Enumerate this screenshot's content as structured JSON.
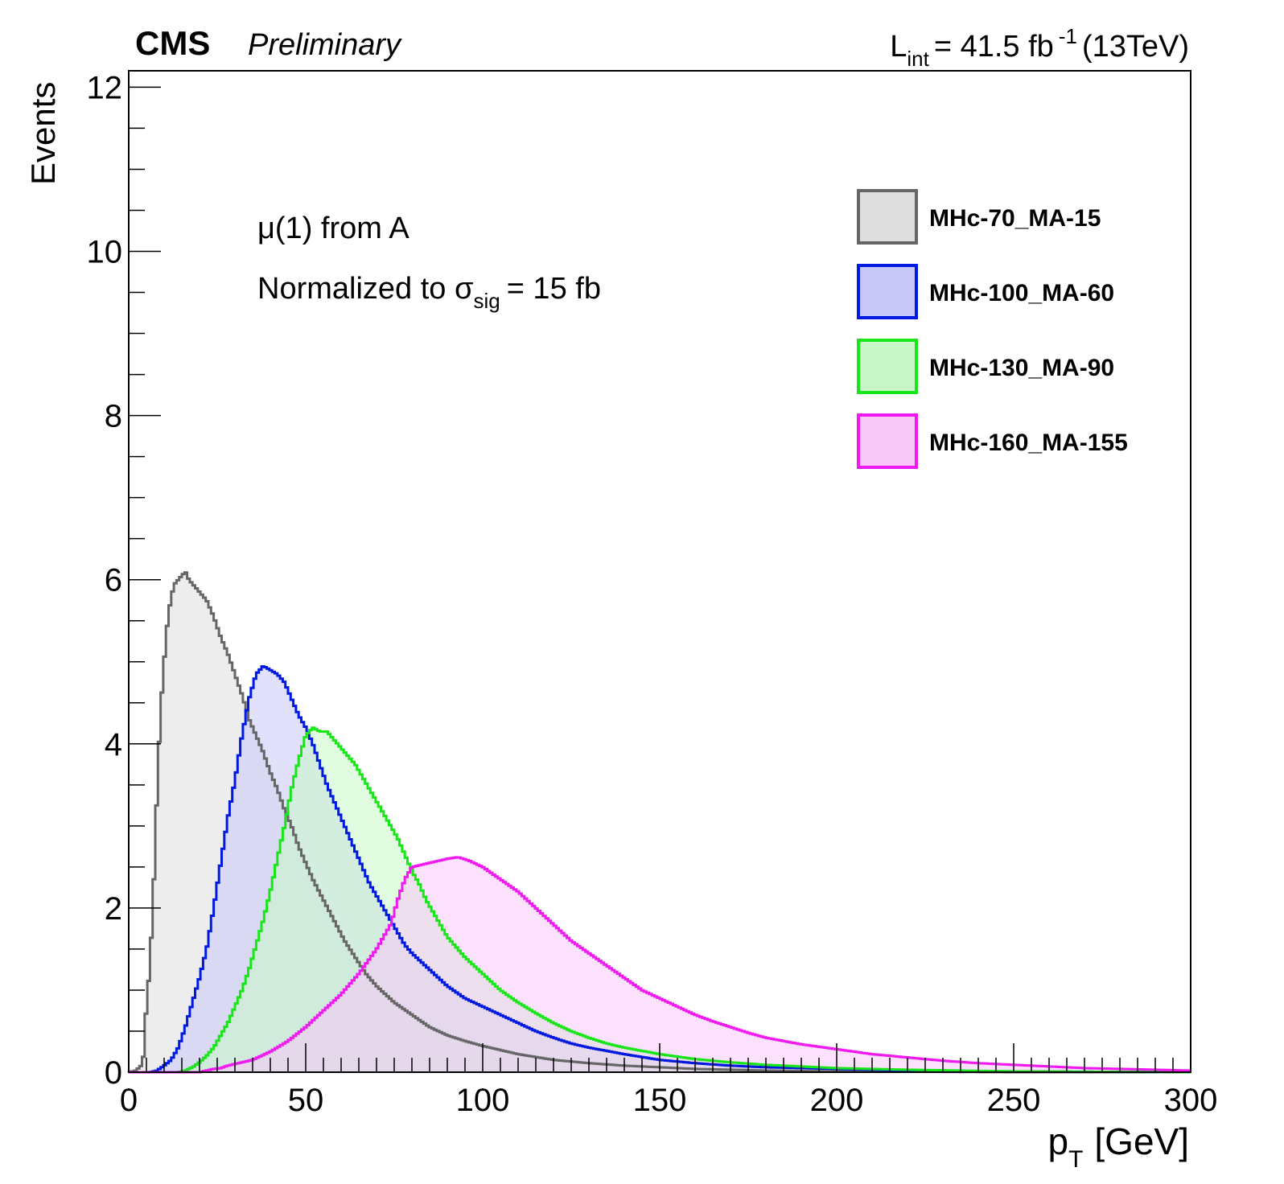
{
  "header": {
    "experiment": "CMS",
    "status": "Preliminary",
    "lumi_prefix": "L",
    "lumi_sub": "int",
    "lumi_value": "= 41.5 fb",
    "lumi_sup": "-1",
    "energy": "(13TeV)"
  },
  "annotations": {
    "line1_symbol": "μ",
    "line1_rest": "(1) from A",
    "line2_prefix": "Normalized to ",
    "line2_symbol": "σ",
    "line2_sub": "sig",
    "line2_suffix": "= 15 fb"
  },
  "colors": {
    "MHc-70_MA-15": "#666666",
    "MHc-100_MA-60": "#0019e0",
    "MHc-130_MA-90": "#19e619",
    "MHc-160_MA-155": "#f019f0"
  },
  "chart_data": {
    "type": "area",
    "xlabel_main": "p",
    "xlabel_sub": "T",
    "xlabel_unit": "[GeV]",
    "ylabel": "Events",
    "xlim": [
      0,
      300
    ],
    "ylim": [
      0,
      12.2
    ],
    "xticks": [
      0,
      50,
      100,
      150,
      200,
      250,
      300
    ],
    "yticks": [
      0,
      2,
      4,
      6,
      8,
      10,
      12
    ],
    "grid": false,
    "legend_position": "top-right",
    "series": [
      {
        "name": "MHc-70_MA-15",
        "fill": "#dedede",
        "line": "#666666",
        "points": [
          [
            0,
            0
          ],
          [
            2,
            0.02
          ],
          [
            4,
            0.1
          ],
          [
            5,
            0.8
          ],
          [
            6,
            1.3
          ],
          [
            7,
            2.2
          ],
          [
            8,
            3.4
          ],
          [
            9,
            4.4
          ],
          [
            10,
            5.0
          ],
          [
            11,
            5.5
          ],
          [
            12,
            5.8
          ],
          [
            13,
            5.95
          ],
          [
            14,
            6.0
          ],
          [
            15,
            6.05
          ],
          [
            16,
            6.1
          ],
          [
            17,
            6.0
          ],
          [
            18,
            5.95
          ],
          [
            20,
            5.85
          ],
          [
            22,
            5.75
          ],
          [
            24,
            5.55
          ],
          [
            26,
            5.3
          ],
          [
            28,
            5.1
          ],
          [
            30,
            4.85
          ],
          [
            32,
            4.6
          ],
          [
            34,
            4.3
          ],
          [
            36,
            4.1
          ],
          [
            38,
            3.9
          ],
          [
            40,
            3.65
          ],
          [
            42,
            3.45
          ],
          [
            44,
            3.2
          ],
          [
            46,
            3.0
          ],
          [
            48,
            2.75
          ],
          [
            50,
            2.55
          ],
          [
            52,
            2.35
          ],
          [
            55,
            2.1
          ],
          [
            58,
            1.85
          ],
          [
            61,
            1.6
          ],
          [
            64,
            1.4
          ],
          [
            67,
            1.2
          ],
          [
            70,
            1.05
          ],
          [
            75,
            0.85
          ],
          [
            80,
            0.7
          ],
          [
            85,
            0.55
          ],
          [
            90,
            0.45
          ],
          [
            95,
            0.38
          ],
          [
            100,
            0.32
          ],
          [
            110,
            0.22
          ],
          [
            120,
            0.15
          ],
          [
            130,
            0.11
          ],
          [
            140,
            0.08
          ],
          [
            150,
            0.06
          ],
          [
            160,
            0.04
          ],
          [
            180,
            0.02
          ],
          [
            200,
            0.01
          ],
          [
            250,
            0.0
          ],
          [
            300,
            0.0
          ]
        ]
      },
      {
        "name": "MHc-100_MA-60",
        "fill": "#c8c8f8",
        "line": "#0019e0",
        "points": [
          [
            0,
            0
          ],
          [
            6,
            0.0
          ],
          [
            8,
            0.02
          ],
          [
            10,
            0.08
          ],
          [
            12,
            0.15
          ],
          [
            14,
            0.3
          ],
          [
            16,
            0.55
          ],
          [
            18,
            0.85
          ],
          [
            20,
            1.15
          ],
          [
            22,
            1.5
          ],
          [
            24,
            2.0
          ],
          [
            26,
            2.55
          ],
          [
            28,
            3.1
          ],
          [
            30,
            3.55
          ],
          [
            32,
            4.1
          ],
          [
            34,
            4.55
          ],
          [
            36,
            4.85
          ],
          [
            38,
            4.95
          ],
          [
            40,
            4.9
          ],
          [
            42,
            4.85
          ],
          [
            44,
            4.75
          ],
          [
            46,
            4.55
          ],
          [
            48,
            4.35
          ],
          [
            50,
            4.2
          ],
          [
            52,
            4.0
          ],
          [
            54,
            3.75
          ],
          [
            56,
            3.5
          ],
          [
            58,
            3.3
          ],
          [
            60,
            3.1
          ],
          [
            62,
            2.9
          ],
          [
            64,
            2.7
          ],
          [
            66,
            2.5
          ],
          [
            68,
            2.3
          ],
          [
            70,
            2.15
          ],
          [
            72,
            2.0
          ],
          [
            74,
            1.85
          ],
          [
            76,
            1.7
          ],
          [
            78,
            1.55
          ],
          [
            80,
            1.45
          ],
          [
            85,
            1.25
          ],
          [
            90,
            1.05
          ],
          [
            95,
            0.9
          ],
          [
            100,
            0.8
          ],
          [
            105,
            0.7
          ],
          [
            110,
            0.6
          ],
          [
            115,
            0.5
          ],
          [
            120,
            0.42
          ],
          [
            125,
            0.35
          ],
          [
            130,
            0.3
          ],
          [
            140,
            0.22
          ],
          [
            150,
            0.15
          ],
          [
            160,
            0.11
          ],
          [
            170,
            0.08
          ],
          [
            180,
            0.06
          ],
          [
            200,
            0.04
          ],
          [
            220,
            0.02
          ],
          [
            250,
            0.01
          ],
          [
            300,
            0.0
          ]
        ]
      },
      {
        "name": "MHc-130_MA-90",
        "fill": "#c8f8c8",
        "line": "#19e619",
        "points": [
          [
            0,
            0
          ],
          [
            14,
            0.0
          ],
          [
            16,
            0.02
          ],
          [
            18,
            0.06
          ],
          [
            20,
            0.12
          ],
          [
            22,
            0.2
          ],
          [
            24,
            0.3
          ],
          [
            26,
            0.45
          ],
          [
            28,
            0.6
          ],
          [
            30,
            0.8
          ],
          [
            32,
            1.0
          ],
          [
            34,
            1.25
          ],
          [
            36,
            1.55
          ],
          [
            38,
            1.85
          ],
          [
            40,
            2.2
          ],
          [
            42,
            2.6
          ],
          [
            44,
            3.0
          ],
          [
            46,
            3.45
          ],
          [
            48,
            3.8
          ],
          [
            50,
            4.1
          ],
          [
            52,
            4.2
          ],
          [
            54,
            4.15
          ],
          [
            56,
            4.15
          ],
          [
            58,
            4.05
          ],
          [
            60,
            3.95
          ],
          [
            62,
            3.85
          ],
          [
            64,
            3.75
          ],
          [
            66,
            3.6
          ],
          [
            68,
            3.45
          ],
          [
            70,
            3.3
          ],
          [
            72,
            3.15
          ],
          [
            74,
            3.0
          ],
          [
            76,
            2.85
          ],
          [
            78,
            2.65
          ],
          [
            80,
            2.45
          ],
          [
            82,
            2.3
          ],
          [
            84,
            2.1
          ],
          [
            86,
            1.95
          ],
          [
            88,
            1.8
          ],
          [
            90,
            1.65
          ],
          [
            95,
            1.4
          ],
          [
            100,
            1.2
          ],
          [
            105,
            1.0
          ],
          [
            110,
            0.85
          ],
          [
            115,
            0.72
          ],
          [
            120,
            0.6
          ],
          [
            125,
            0.5
          ],
          [
            130,
            0.42
          ],
          [
            135,
            0.35
          ],
          [
            140,
            0.3
          ],
          [
            150,
            0.22
          ],
          [
            160,
            0.16
          ],
          [
            170,
            0.12
          ],
          [
            180,
            0.09
          ],
          [
            190,
            0.07
          ],
          [
            200,
            0.05
          ],
          [
            220,
            0.03
          ],
          [
            250,
            0.01
          ],
          [
            300,
            0.0
          ]
        ]
      },
      {
        "name": "MHc-160_MA-155",
        "fill": "#f8c8f8",
        "line": "#f019f0",
        "points": [
          [
            0,
            0
          ],
          [
            20,
            0.0
          ],
          [
            22,
            0.02
          ],
          [
            24,
            0.04
          ],
          [
            26,
            0.05
          ],
          [
            28,
            0.08
          ],
          [
            30,
            0.1
          ],
          [
            35,
            0.15
          ],
          [
            40,
            0.25
          ],
          [
            45,
            0.38
          ],
          [
            50,
            0.55
          ],
          [
            55,
            0.75
          ],
          [
            60,
            0.95
          ],
          [
            65,
            1.2
          ],
          [
            70,
            1.5
          ],
          [
            74,
            1.8
          ],
          [
            76,
            2.1
          ],
          [
            78,
            2.35
          ],
          [
            80,
            2.5
          ],
          [
            85,
            2.55
          ],
          [
            90,
            2.6
          ],
          [
            93,
            2.62
          ],
          [
            96,
            2.58
          ],
          [
            100,
            2.5
          ],
          [
            105,
            2.35
          ],
          [
            110,
            2.2
          ],
          [
            115,
            2.0
          ],
          [
            120,
            1.8
          ],
          [
            125,
            1.6
          ],
          [
            130,
            1.45
          ],
          [
            135,
            1.3
          ],
          [
            140,
            1.15
          ],
          [
            145,
            1.0
          ],
          [
            150,
            0.9
          ],
          [
            155,
            0.8
          ],
          [
            160,
            0.7
          ],
          [
            165,
            0.62
          ],
          [
            170,
            0.55
          ],
          [
            175,
            0.48
          ],
          [
            180,
            0.42
          ],
          [
            190,
            0.34
          ],
          [
            200,
            0.28
          ],
          [
            210,
            0.22
          ],
          [
            220,
            0.18
          ],
          [
            230,
            0.14
          ],
          [
            240,
            0.11
          ],
          [
            250,
            0.09
          ],
          [
            260,
            0.07
          ],
          [
            270,
            0.05
          ],
          [
            280,
            0.04
          ],
          [
            290,
            0.03
          ],
          [
            300,
            0.02
          ]
        ]
      }
    ]
  }
}
